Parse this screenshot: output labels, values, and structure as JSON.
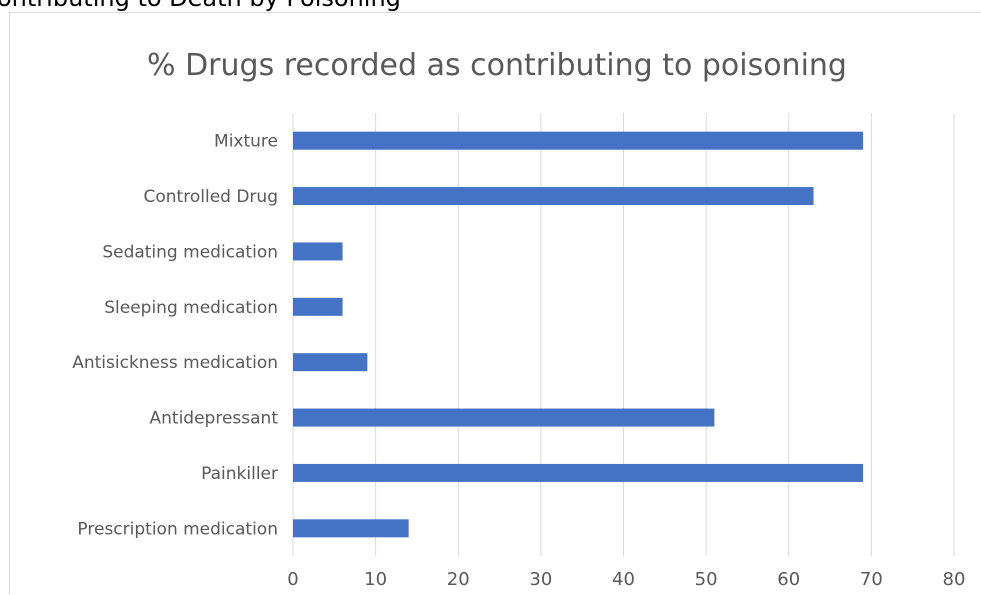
{
  "page": {
    "heading": "ontributing to Death by Poisoning"
  },
  "chart_data": {
    "type": "bar",
    "orientation": "horizontal",
    "title": "% Drugs recorded as contributing to poisoning",
    "xlabel": "",
    "ylabel": "",
    "categories": [
      "Mixture",
      "Controlled Drug",
      "Sedating medication",
      "Sleeping medication",
      "Antisickness medication",
      "Antidepressant",
      "Painkiller",
      "Prescription medication"
    ],
    "values": [
      69,
      63,
      6,
      6,
      9,
      51,
      69,
      14
    ],
    "xlim": [
      0,
      80
    ],
    "xticks": [
      "0",
      "10",
      "20",
      "30",
      "40",
      "50",
      "60",
      "70",
      "80"
    ],
    "grid": "vertical",
    "legend": "none",
    "colors": {
      "bar": "#4472c4",
      "grid": "#d9d9d9",
      "title": "#595959",
      "tick_label": "#595959"
    }
  }
}
